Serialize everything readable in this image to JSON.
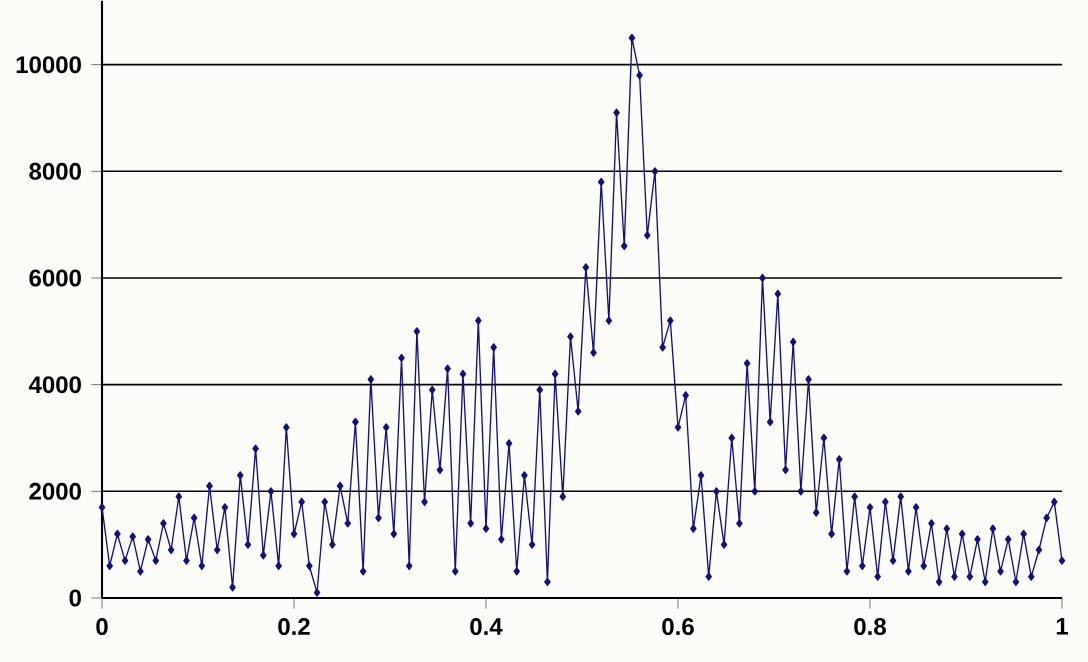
{
  "chart_data": {
    "type": "line",
    "x": [
      0,
      0.008,
      0.016,
      0.024,
      0.032,
      0.04,
      0.048,
      0.056,
      0.064,
      0.072,
      0.08,
      0.088,
      0.096,
      0.104,
      0.112,
      0.12,
      0.128,
      0.136,
      0.144,
      0.152,
      0.16,
      0.168,
      0.176,
      0.184,
      0.192,
      0.2,
      0.208,
      0.216,
      0.224,
      0.232,
      0.24,
      0.248,
      0.256,
      0.264,
      0.272,
      0.28,
      0.288,
      0.296,
      0.304,
      0.312,
      0.32,
      0.328,
      0.336,
      0.344,
      0.352,
      0.36,
      0.368,
      0.376,
      0.384,
      0.392,
      0.4,
      0.408,
      0.416,
      0.424,
      0.432,
      0.44,
      0.448,
      0.456,
      0.464,
      0.472,
      0.48,
      0.488,
      0.496,
      0.504,
      0.512,
      0.52,
      0.528,
      0.536,
      0.544,
      0.552,
      0.56,
      0.568,
      0.576,
      0.584,
      0.592,
      0.6,
      0.608,
      0.616,
      0.624,
      0.632,
      0.64,
      0.648,
      0.656,
      0.664,
      0.672,
      0.68,
      0.688,
      0.696,
      0.704,
      0.712,
      0.72,
      0.728,
      0.736,
      0.744,
      0.752,
      0.76,
      0.768,
      0.776,
      0.784,
      0.792,
      0.8,
      0.808,
      0.816,
      0.824,
      0.832,
      0.84,
      0.848,
      0.856,
      0.864,
      0.872,
      0.88,
      0.888,
      0.896,
      0.904,
      0.912,
      0.92,
      0.928,
      0.936,
      0.944,
      0.952,
      0.96,
      0.968,
      0.976,
      0.984,
      0.992,
      1
    ],
    "values": [
      1700,
      600,
      1200,
      700,
      1150,
      500,
      1100,
      700,
      1400,
      900,
      1900,
      700,
      1500,
      600,
      2100,
      900,
      1700,
      200,
      2300,
      1000,
      2800,
      800,
      2000,
      600,
      3200,
      1200,
      1800,
      600,
      100,
      1800,
      1000,
      2100,
      1400,
      3300,
      500,
      4100,
      1500,
      3200,
      1200,
      4500,
      600,
      5000,
      1800,
      3900,
      2400,
      4300,
      500,
      4200,
      1400,
      5200,
      1300,
      4700,
      1100,
      2900,
      500,
      2300,
      1000,
      3900,
      300,
      4200,
      1900,
      4900,
      3500,
      6200,
      4600,
      7800,
      5200,
      9100,
      6600,
      10500,
      9800,
      6800,
      8000,
      4700,
      5200,
      3200,
      3800,
      1300,
      2300,
      400,
      2000,
      1000,
      3000,
      1400,
      4400,
      2000,
      6000,
      3300,
      5700,
      2400,
      4800,
      2000,
      4100,
      1600,
      3000,
      1200,
      2600,
      500,
      1900,
      600,
      1700,
      400,
      1800,
      700,
      1900,
      500,
      1700,
      600,
      1400,
      300,
      1300,
      400,
      1200,
      400,
      1100,
      300,
      1300,
      500,
      1100,
      300,
      1200,
      400,
      900,
      1500,
      1800,
      700
    ],
    "color": "#10107f",
    "marker": "diamond",
    "line_style": "solid",
    "xlim": [
      0,
      1
    ],
    "xticks": [
      0,
      0.2,
      0.4,
      0.6,
      0.8,
      1
    ],
    "ylim": [
      0,
      11200
    ],
    "yticks": [
      0,
      2000,
      4000,
      6000,
      8000,
      10000
    ],
    "grid": "y"
  }
}
